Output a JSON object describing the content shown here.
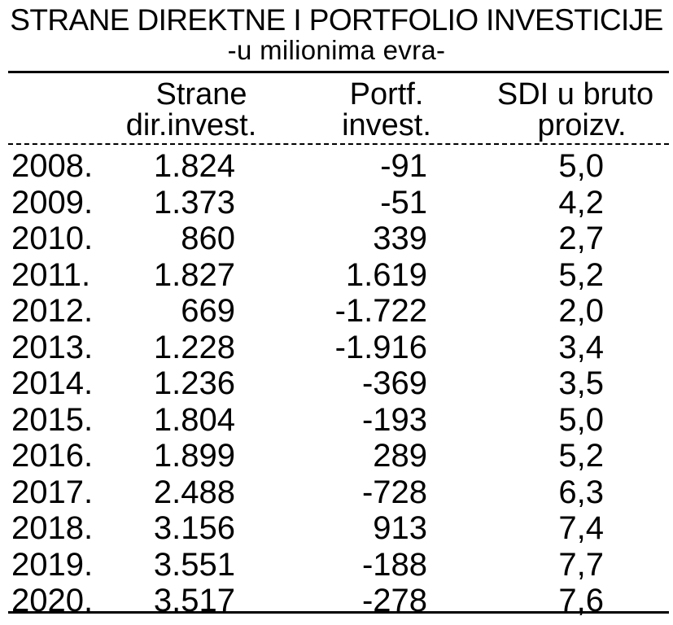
{
  "title": "STRANE DIREKTNE I PORTFOLIO INVESTICIJE",
  "subtitle": "-u milionima evra-",
  "headers": {
    "col1_line1": "Strane",
    "col1_line2": "dir.invest.",
    "col2_line1": "Portf.",
    "col2_line2": "invest.",
    "col3_line1": "SDI u bruto",
    "col3_line2": "proizv."
  },
  "rows": [
    {
      "year": "2008.",
      "sdi": "1.824",
      "portf": "-91",
      "pct": "5,0"
    },
    {
      "year": "2009.",
      "sdi": "1.373",
      "portf": "-51",
      "pct": "4,2"
    },
    {
      "year": "2010.",
      "sdi": "860",
      "portf": "339",
      "pct": "2,7"
    },
    {
      "year": "2011.",
      "sdi": "1.827",
      "portf": "1.619",
      "pct": "5,2"
    },
    {
      "year": "2012.",
      "sdi": "669",
      "portf": "-1.722",
      "pct": "2,0"
    },
    {
      "year": "2013.",
      "sdi": "1.228",
      "portf": "-1.916",
      "pct": "3,4"
    },
    {
      "year": "2014.",
      "sdi": "1.236",
      "portf": "-369",
      "pct": "3,5"
    },
    {
      "year": "2015.",
      "sdi": "1.804",
      "portf": "-193",
      "pct": "5,0"
    },
    {
      "year": "2016.",
      "sdi": "1.899",
      "portf": "289",
      "pct": "5,2"
    },
    {
      "year": "2017.",
      "sdi": "2.488",
      "portf": "-728",
      "pct": "6,3"
    },
    {
      "year": "2018.",
      "sdi": "3.156",
      "portf": "913",
      "pct": "7,4"
    },
    {
      "year": "2019.",
      "sdi": "3.551",
      "portf": "-188",
      "pct": "7,7"
    },
    {
      "year": "2020.",
      "sdi": "3.517",
      "portf": "-278",
      "pct": "7,6"
    }
  ]
}
